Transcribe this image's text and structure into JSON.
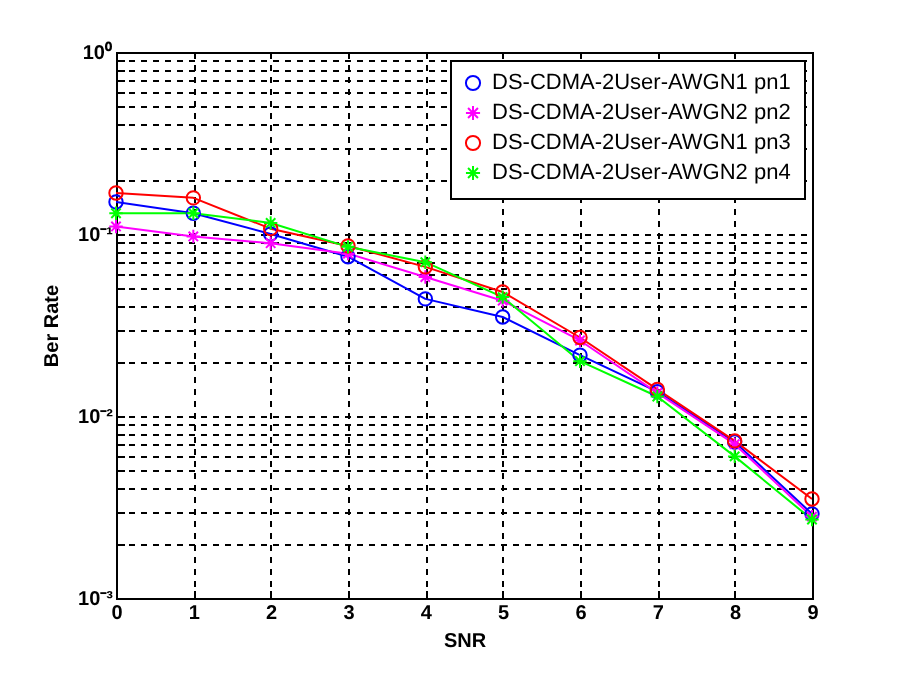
{
  "chart_data": {
    "type": "line",
    "xlabel": "SNR",
    "ylabel": "Ber Rate",
    "x": [
      0,
      1,
      2,
      3,
      4,
      5,
      6,
      7,
      8,
      9
    ],
    "series": [
      {
        "name": "DS-CDMA-2User-AWGN1 pn1",
        "color": "#0000ff",
        "marker": "circle",
        "values": [
          0.15,
          0.13,
          0.1,
          0.075,
          0.044,
          0.035,
          0.0216,
          0.0136,
          0.0072,
          0.0029
        ]
      },
      {
        "name": "DS-CDMA-2User-AWGN2 pn2",
        "color": "#ff00ff",
        "marker": "cross",
        "values": [
          0.11,
          0.097,
          0.089,
          0.078,
          0.058,
          0.043,
          0.026,
          0.0134,
          0.007,
          0.0028
        ]
      },
      {
        "name": "DS-CDMA-2User-AWGN1 pn3",
        "color": "#ff0000",
        "marker": "circle",
        "values": [
          0.168,
          0.158,
          0.107,
          0.086,
          0.066,
          0.048,
          0.027,
          0.014,
          0.0073,
          0.0035
        ]
      },
      {
        "name": "DS-CDMA-2User-AWGN2 pn4",
        "color": "#00ff00",
        "marker": "cross",
        "values": [
          0.13,
          0.13,
          0.115,
          0.085,
          0.07,
          0.045,
          0.02,
          0.0128,
          0.006,
          0.0027
        ]
      }
    ],
    "log": "y",
    "xlim": [
      0,
      9
    ],
    "ylim": [
      0.001,
      1
    ],
    "xticks": [
      0,
      1,
      2,
      3,
      4,
      5,
      6,
      7,
      8,
      9
    ],
    "yticks": [
      {
        "value": 0.001,
        "label": "10⁻³"
      },
      {
        "value": 0.002,
        "label": null
      },
      {
        "value": 0.003,
        "label": null
      },
      {
        "value": 0.004,
        "label": null
      },
      {
        "value": 0.005,
        "label": null
      },
      {
        "value": 0.006,
        "label": null
      },
      {
        "value": 0.007,
        "label": null
      },
      {
        "value": 0.008,
        "label": null
      },
      {
        "value": 0.009,
        "label": null
      },
      {
        "value": 0.01,
        "label": "10⁻²"
      },
      {
        "value": 0.02,
        "label": null
      },
      {
        "value": 0.03,
        "label": null
      },
      {
        "value": 0.04,
        "label": null
      },
      {
        "value": 0.05,
        "label": null
      },
      {
        "value": 0.06,
        "label": null
      },
      {
        "value": 0.07,
        "label": null
      },
      {
        "value": 0.08,
        "label": null
      },
      {
        "value": 0.09,
        "label": null
      },
      {
        "value": 0.1,
        "label": "10⁻¹"
      },
      {
        "value": 0.2,
        "label": null
      },
      {
        "value": 0.3,
        "label": null
      },
      {
        "value": 0.4,
        "label": null
      },
      {
        "value": 0.5,
        "label": null
      },
      {
        "value": 0.6,
        "label": null
      },
      {
        "value": 0.7,
        "label": null
      },
      {
        "value": 0.8,
        "label": null
      },
      {
        "value": 0.9,
        "label": null
      },
      {
        "value": 1,
        "label": "10⁰"
      }
    ],
    "grid": true,
    "legend": "top right",
    "line_style": "solid"
  }
}
